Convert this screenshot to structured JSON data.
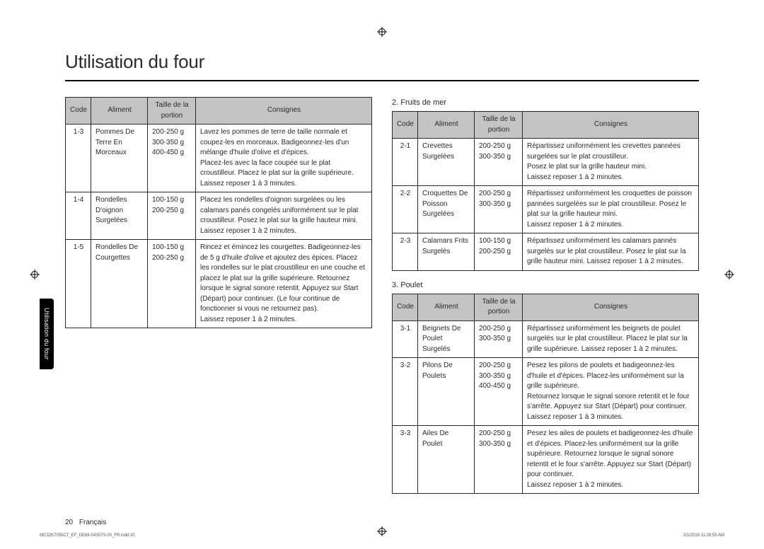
{
  "title": "Utilisation du four",
  "side_tab": "Utilisation du four",
  "footer": {
    "page_num": "20",
    "lang": "Français"
  },
  "footprint": {
    "file": "MC32K7055CT_EF_DE68-04307S-00_FR.indd   20",
    "timestamp": "2/1/2016   11:28:55 AM"
  },
  "sections": [
    {
      "heading": null,
      "columns": [
        "Code",
        "Aliment",
        "Taille de la portion",
        "Consignes"
      ],
      "rows": [
        {
          "code": "1-3",
          "aliment": "Pommes De Terre En Morceaux",
          "portion": "200-250 g\n300-350 g\n400-450 g",
          "consignes": "Lavez les pommes de terre de taille normale et coupez-les en morceaux. Badigeonnez-les d'un mélange d'huile d'olive et d'épices.\nPlacez-les avec la face coupée sur le plat croustilleur. Placez le plat sur la grille supérieure. Laissez reposer 1 à 3 minutes."
        },
        {
          "code": "1-4",
          "aliment": "Rondelles D'oignon Surgelées",
          "portion": "100-150 g\n200-250 g",
          "consignes": "Placez les rondelles d'oignon surgelées ou les calamars panés congelés uniformément sur le plat croustilleur. Posez le plat sur la grille hauteur mini. Laissez reposer 1 à 2 minutes."
        },
        {
          "code": "1-5",
          "aliment": "Rondelles De Courgettes",
          "portion": "100-150 g\n200-250 g",
          "consignes": "Rincez et émincez les courgettes. Badigeonnez-les de 5 g d'huile d'olive et ajoutez des épices. Placez les rondelles sur le plat croustilleur en une couche et placez le plat sur la grille supérieure. Retournez lorsque le signal sonore retentit. Appuyez sur Start (Départ) pour continuer. (Le four continue de fonctionner si vous ne retournez pas).\nLaissez reposer 1 à 2 minutes."
        }
      ]
    },
    {
      "heading": "2. Fruits de mer",
      "columns": [
        "Code",
        "Aliment",
        "Taille de la portion",
        "Consignes"
      ],
      "rows": [
        {
          "code": "2-1",
          "aliment": "Crevettes Surgelées",
          "portion": "200-250 g\n300-350 g",
          "consignes": "Répartissez uniformément les crevettes pannées surgelées sur le plat croustilleur.\nPosez le plat sur la grille hauteur mini.\nLaissez reposer 1 à 2 minutes."
        },
        {
          "code": "2-2",
          "aliment": "Croquettes De Poisson Surgelées",
          "portion": "200-250 g\n300-350 g",
          "consignes": "Répartissez uniformément les croquettes de poisson pannées surgelées sur le plat croustilleur. Posez le plat sur la grille hauteur mini.\nLaissez reposer 1 à 2 minutes."
        },
        {
          "code": "2-3",
          "aliment": "Calamars Frits Surgelés",
          "portion": "100-150 g\n200-250 g",
          "consignes": "Répartissez uniformément les calamars pannés surgelés sur le plat croustilleur. Posez le plat sur la grille hauteur mini. Laissez reposer 1 à 2 minutes."
        }
      ]
    },
    {
      "heading": "3. Poulet",
      "columns": [
        "Code",
        "Aliment",
        "Taille de la portion",
        "Consignes"
      ],
      "rows": [
        {
          "code": "3-1",
          "aliment": "Beignets De Poulet Surgelés",
          "portion": "200-250 g\n300-350 g",
          "consignes": "Répartissez uniformément les beignets de poulet surgelés sur le plat croustilleur. Placez le plat sur la grille supérieure. Laissez reposer 1 à 2 minutes."
        },
        {
          "code": "3-2",
          "aliment": "Pilons De Poulets",
          "portion": "200-250 g\n300-350 g\n400-450 g",
          "consignes": "Pesez les pilons de poulets et badigeonnez-les d'huile et d'épices. Placez-les uniformément sur la grille supérieure.\nRetournez lorsque le signal sonore retentit et le four s'arrête. Appuyez sur Start (Départ) pour continuer. Laissez reposer 1 à 3 minutes."
        },
        {
          "code": "3-3",
          "aliment": "Ailes De Poulet",
          "portion": "200-250 g\n300-350 g",
          "consignes": "Pesez les ailes de poulets et badigeonnez-les d'huile et d'épices. Placez-les uniformément sur la grille supérieure. Retournez lorsque le signal sonore retentit et le four s'arrête. Appuyez sur Start (Départ) pour continuer.\nLaissez reposer 1 à 2 minutes."
        }
      ]
    }
  ]
}
